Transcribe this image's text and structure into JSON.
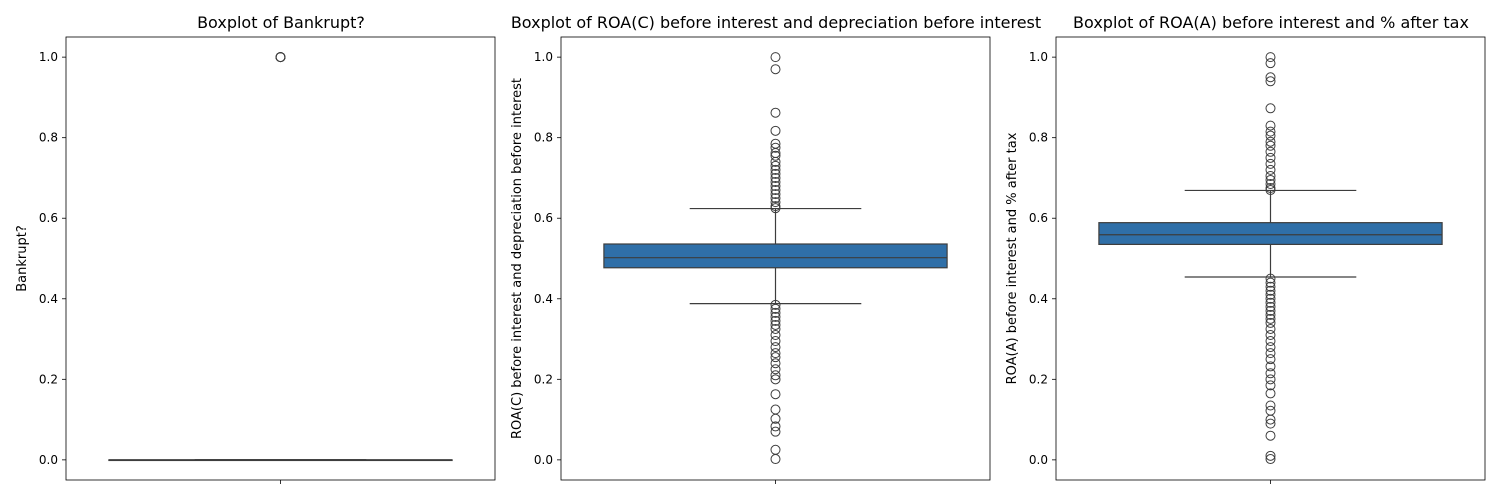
{
  "chart_data": [
    {
      "type": "box",
      "title": "Boxplot of Bankrupt?",
      "ylabel": "Bankrupt?",
      "ylim": [
        -0.05,
        1.05
      ],
      "yticks": [
        "0.0",
        "0.2",
        "0.4",
        "0.6",
        "0.8",
        "1.0"
      ],
      "box": {
        "q1": 0.0,
        "median": 0.0,
        "q3": 0.0,
        "whisker_low": 0.0,
        "whisker_high": 0.0
      },
      "outliers": [
        1.0,
        1.0,
        1.0,
        1.0,
        1.0
      ],
      "box_color": "#2f6fa8",
      "grid": false
    },
    {
      "type": "box",
      "title": "Boxplot of  ROA(C) before interest and depreciation before interest",
      "ylabel": "ROA(C) before interest and depreciation before interest",
      "ylim": [
        -0.05,
        1.05
      ],
      "yticks": [
        "0.0",
        "0.2",
        "0.4",
        "0.6",
        "0.8",
        "1.0"
      ],
      "box": {
        "q1": 0.477,
        "median": 0.502,
        "q3": 0.536,
        "whisker_low": 0.388,
        "whisker_high": 0.624
      },
      "outliers": [
        1.0,
        0.97,
        0.862,
        0.817,
        0.785,
        0.775,
        0.762,
        0.755,
        0.74,
        0.73,
        0.72,
        0.71,
        0.7,
        0.69,
        0.68,
        0.67,
        0.66,
        0.65,
        0.64,
        0.63,
        0.625,
        0.385,
        0.375,
        0.365,
        0.355,
        0.345,
        0.335,
        0.325,
        0.31,
        0.295,
        0.28,
        0.265,
        0.255,
        0.24,
        0.225,
        0.21,
        0.2,
        0.163,
        0.125,
        0.102,
        0.083,
        0.07,
        0.025,
        0.002
      ],
      "box_color": "#2f6fa8",
      "grid": false
    },
    {
      "type": "box",
      "title": "Boxplot of  ROA(A) before interest and % after tax",
      "ylabel": "ROA(A) before interest and % after tax",
      "ylim": [
        -0.05,
        1.05
      ],
      "yticks": [
        "0.0",
        "0.2",
        "0.4",
        "0.6",
        "0.8",
        "1.0"
      ],
      "box": {
        "q1": 0.535,
        "median": 0.559,
        "q3": 0.589,
        "whisker_low": 0.454,
        "whisker_high": 0.669
      },
      "outliers": [
        1.0,
        0.985,
        0.95,
        0.94,
        0.873,
        0.83,
        0.815,
        0.805,
        0.79,
        0.78,
        0.765,
        0.75,
        0.735,
        0.72,
        0.705,
        0.695,
        0.685,
        0.675,
        0.67,
        0.45,
        0.44,
        0.43,
        0.42,
        0.41,
        0.4,
        0.39,
        0.38,
        0.37,
        0.36,
        0.35,
        0.34,
        0.325,
        0.31,
        0.295,
        0.28,
        0.265,
        0.25,
        0.232,
        0.215,
        0.2,
        0.185,
        0.165,
        0.135,
        0.122,
        0.1,
        0.09,
        0.06,
        0.01,
        0.002
      ],
      "box_color": "#2f6fa8",
      "grid": false
    }
  ]
}
